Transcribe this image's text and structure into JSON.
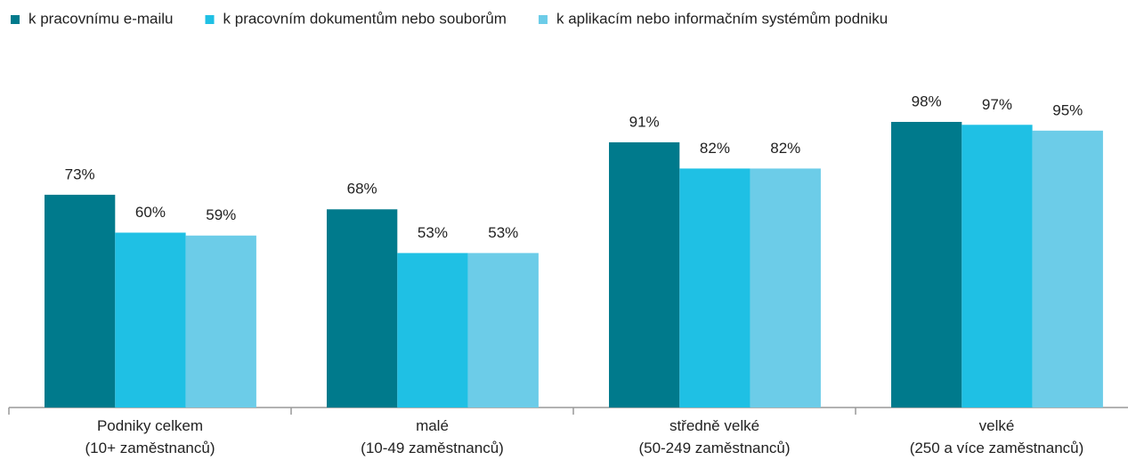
{
  "chart_data": {
    "type": "bar",
    "categories": [
      "Podniky celkem\n(10+ zaměstnanců)",
      "malé\n(10-49 zaměstnanců)",
      "středně velké\n(50-249 zaměstnanců)",
      "velké\n(250 a více zaměstnanců)"
    ],
    "series": [
      {
        "name": "k pracovnímu e-mailu",
        "color": "#007a8c",
        "values": [
          73,
          68,
          91,
          98
        ],
        "value_labels": [
          "73%",
          "68%",
          "91%",
          "98%"
        ]
      },
      {
        "name": "k pracovním dokumentům nebo souborům",
        "color": "#1fc0e4",
        "values": [
          60,
          53,
          82,
          97
        ],
        "value_labels": [
          "60%",
          "53%",
          "82%",
          "97%"
        ]
      },
      {
        "name": "k aplikacím nebo informačním systémům podniku",
        "color": "#6ccce8",
        "values": [
          59,
          53,
          82,
          95
        ],
        "value_labels": [
          "59%",
          "53%",
          "82%",
          "95%"
        ]
      }
    ]
  }
}
